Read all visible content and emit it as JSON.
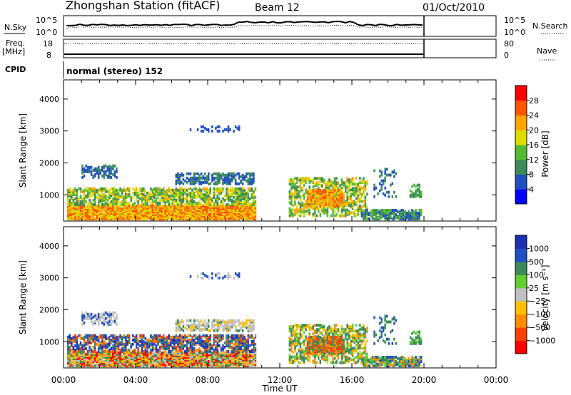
{
  "header": {
    "station": "Zhongshan Station (fitACF)",
    "beam": "Beam 12",
    "date": "01/Oct/2010"
  },
  "top_panels": {
    "nsky_label": "N.Sky",
    "nsearch_label": "N.Search",
    "freq_label_1": "Freq.",
    "freq_label_2": "[MHz]",
    "nave_label": "Nave",
    "cpid_label": "CPID",
    "cpid_value": "normal (stereo) 152",
    "nsky_ticks": [
      "10^5",
      "10^0"
    ],
    "nsearch_ticks": [
      "10^5",
      "10^0"
    ],
    "freq_ticks": [
      "18",
      "8"
    ],
    "nave_ticks": [
      "80",
      "0"
    ]
  },
  "colors": {
    "power_scale": [
      "#0000ff",
      "#2050c0",
      "#3a8a5a",
      "#55bb33",
      "#dddd00",
      "#ffa500",
      "#ff5500",
      "#ff0000"
    ],
    "velocity_scale": [
      "#ff0000",
      "#ff4000",
      "#ff8c00",
      "#ffc000",
      "#c0c0c0",
      "#66cc33",
      "#3a8a5a",
      "#2050c0",
      "#1a30b0"
    ]
  },
  "chart_data": [
    {
      "type": "heatmap",
      "name": "power",
      "xlabel": "Time UT",
      "ylabel": "Slant Range [km]",
      "colorbar_label": "Power [dB]",
      "xlim": [
        0,
        24
      ],
      "ylim": [
        180,
        4600
      ],
      "x_ticks": [
        "00:00",
        "04:00",
        "08:00",
        "12:00",
        "16:00",
        "20:00",
        "00:00"
      ],
      "y_ticks": [
        1000,
        2000,
        3000,
        4000
      ],
      "colorbar_ticks": [
        4,
        8,
        12,
        16,
        20,
        24,
        28
      ],
      "colorbar_range": [
        0,
        32
      ],
      "data_end_hour": 20
    },
    {
      "type": "heatmap",
      "name": "velocity",
      "xlabel": "Time UT",
      "ylabel": "Slant Range [km]",
      "colorbar_label": "Velocity [m s⁻¹]",
      "xlim": [
        0,
        24
      ],
      "ylim": [
        180,
        4600
      ],
      "x_ticks": [
        "00:00",
        "04:00",
        "08:00",
        "12:00",
        "16:00",
        "20:00",
        "00:00"
      ],
      "y_ticks": [
        1000,
        2000,
        3000,
        4000
      ],
      "colorbar_ticks": [
        "1000",
        "500",
        "100",
        "25",
        "−25",
        "−100",
        "−500",
        "−1000"
      ],
      "data_end_hour": 20
    }
  ]
}
